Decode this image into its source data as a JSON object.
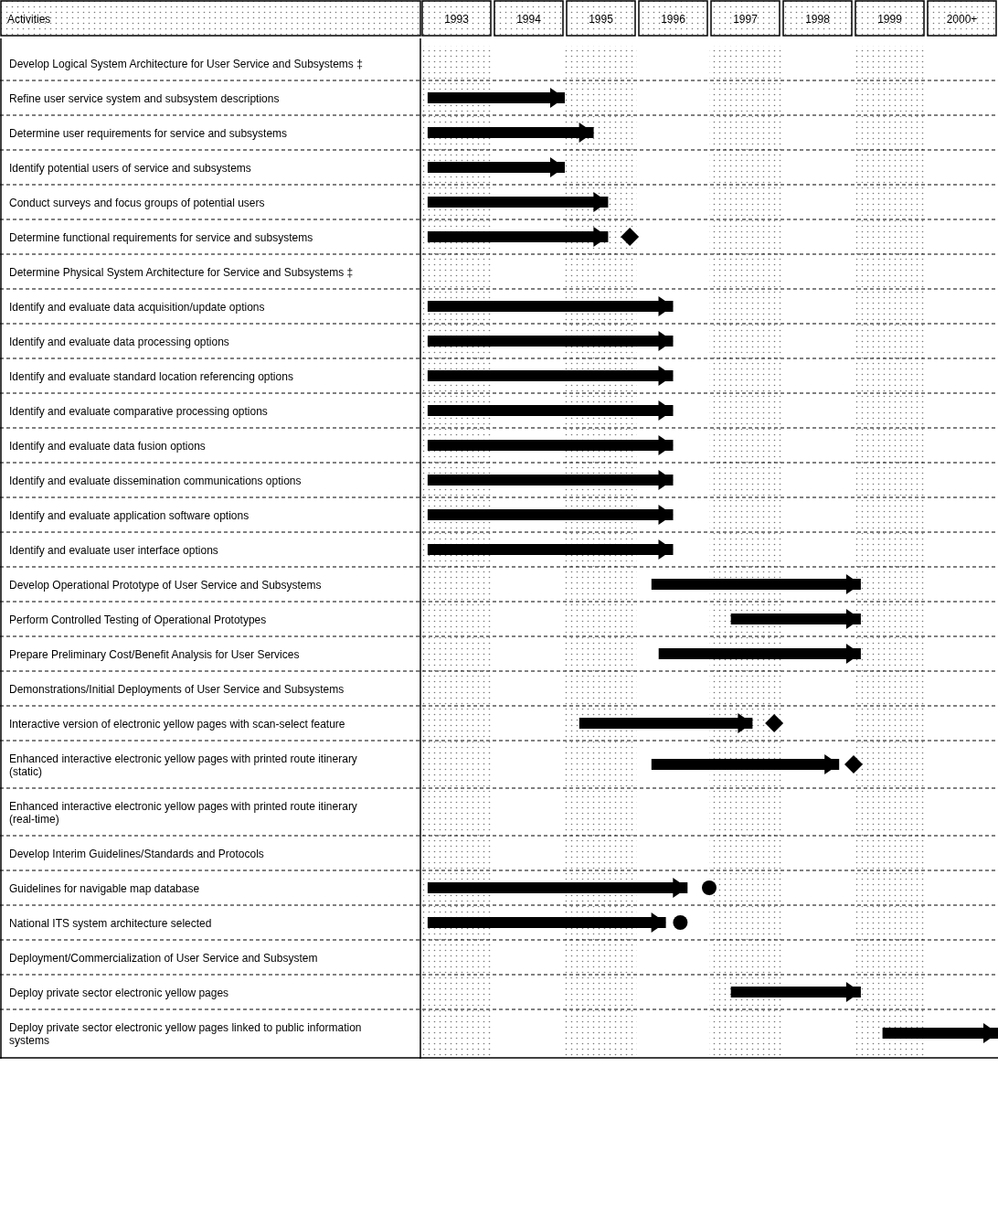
{
  "chart_data": {
    "type": "bar",
    "orientation": "horizontal",
    "ylabel": "Activities",
    "categories": [
      "Develop Logical System Architecture for User Service and Subsystems ‡",
      "Refine user service system and subsystem descriptions",
      "Determine user requirements for service and subsystems",
      "Identify potential users of service and subsystems",
      "Conduct surveys and focus groups of potential users",
      "Determine functional requirements for service and subsystems",
      "Determine Physical System Architecture for Service and Subsystems ‡",
      "Identify and evaluate data acquisition/update options",
      "Identify and evaluate data processing options",
      "Identify and evaluate standard location referencing options",
      "Identify and evaluate comparative processing options",
      "Identify and evaluate data fusion options",
      "Identify and evaluate dissemination communications options",
      "Identify and evaluate application software options",
      "Identify and evaluate user interface options",
      "Develop Operational Prototype of User Service and Subsystems",
      "Perform Controlled Testing of Operational Prototypes",
      "Prepare Preliminary Cost/Benefit Analysis for User Services",
      "Demonstrations/Initial Deployments of User Service and Subsystems",
      "Interactive version of electronic yellow pages with scan-select feature",
      "Enhanced interactive electronic yellow pages with printed route itinerary (static)",
      "Enhanced interactive electronic yellow pages with printed route itinerary (real-time)",
      "Develop Interim Guidelines/Standards and Protocols",
      "Guidelines for navigable map database",
      "National ITS system architecture selected",
      "Deployment/Commercialization of User Service and Subsystem",
      "Deploy private sector electronic yellow pages",
      "Deploy private sector electronic yellow pages linked to public information systems"
    ],
    "series": [
      {
        "color": "#000000",
        "base": [
          null,
          1993.1,
          1993.1,
          1993.1,
          1993.1,
          1993.1,
          null,
          1993.1,
          1993.1,
          1993.1,
          1993.1,
          1993.1,
          1993.1,
          1993.1,
          1993.1,
          1996.2,
          1997.3,
          1996.3,
          null,
          1995.2,
          1996.2,
          null,
          null,
          1993.1,
          1993.1,
          null,
          1997.3,
          1999.4
        ],
        "values": [
          null,
          1.9,
          2.3,
          1.9,
          2.5,
          2.5,
          null,
          3.4,
          3.4,
          3.4,
          3.4,
          3.4,
          3.4,
          3.4,
          3.4,
          2.9,
          1.8,
          2.8,
          null,
          2.4,
          2.6,
          null,
          null,
          3.6,
          3.3,
          null,
          1.8,
          1.6
        ]
      },
      {
        "type": "scatter",
        "marker": "diamond",
        "color": "#000000",
        "values": [
          null,
          null,
          null,
          null,
          null,
          1995.9,
          null,
          null,
          null,
          null,
          null,
          null,
          null,
          null,
          null,
          null,
          null,
          null,
          null,
          1997.9,
          1999.0,
          null,
          null,
          null,
          null,
          null,
          null,
          null
        ]
      },
      {
        "type": "scatter",
        "marker": "circle",
        "color": "#000000",
        "values": [
          null,
          null,
          null,
          null,
          null,
          null,
          null,
          null,
          null,
          null,
          null,
          null,
          null,
          null,
          null,
          null,
          null,
          null,
          null,
          null,
          null,
          null,
          null,
          1997.0,
          1996.6,
          null,
          null,
          null
        ]
      }
    ],
    "bands": [
      {
        "axis": "x",
        "from": 1993,
        "to": 1994,
        "color": "#777777"
      },
      {
        "axis": "x",
        "from": 1995,
        "to": 1996,
        "color": "#777777"
      },
      {
        "axis": "x",
        "from": 1997,
        "to": 1998,
        "color": "#777777"
      },
      {
        "axis": "x",
        "from": 1999,
        "to": 2000,
        "color": "#777777"
      }
    ],
    "xlim": [
      1993,
      2001
    ],
    "xticks": [
      {
        "value": 1993.5,
        "label": "1993"
      },
      {
        "value": 1994.5,
        "label": "1994"
      },
      {
        "value": 1995.5,
        "label": "1995"
      },
      {
        "value": 1996.5,
        "label": "1996"
      },
      {
        "value": 1997.5,
        "label": "1997"
      },
      {
        "value": 1998.5,
        "label": "1998"
      },
      {
        "value": 1999.5,
        "label": "1999"
      },
      {
        "value": 2000.5,
        "label": "2000+"
      }
    ]
  }
}
